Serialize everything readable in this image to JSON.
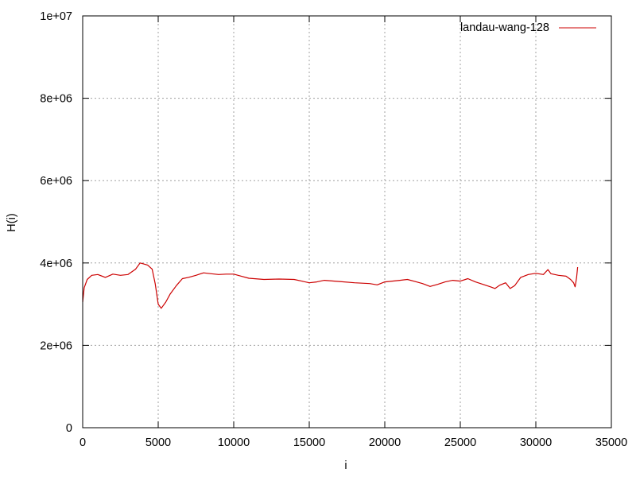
{
  "chart_data": {
    "type": "line",
    "title": "",
    "xlabel": "i",
    "ylabel": "H(i)",
    "xlim": [
      0,
      35000
    ],
    "ylim": [
      0,
      10000000
    ],
    "x_ticks": [
      0,
      5000,
      10000,
      15000,
      20000,
      25000,
      30000,
      35000
    ],
    "x_tick_labels": [
      "0",
      "5000",
      "10000",
      "15000",
      "20000",
      "25000",
      "30000",
      "35000"
    ],
    "y_ticks": [
      0,
      2000000,
      4000000,
      6000000,
      8000000,
      10000000
    ],
    "y_tick_labels": [
      "0",
      "2e+06",
      "4e+06",
      "6e+06",
      "8e+06",
      "1e+07"
    ],
    "grid": true,
    "legend_position": "top-right",
    "series_color": "#cc0000",
    "series": [
      {
        "name": "landau-wang-128",
        "x": [
          0,
          100,
          300,
          600,
          1000,
          1500,
          2000,
          2500,
          3000,
          3500,
          3800,
          4000,
          4300,
          4600,
          4800,
          5000,
          5200,
          5500,
          5800,
          6200,
          6600,
          7000,
          7500,
          8000,
          8500,
          9000,
          9500,
          10000,
          10500,
          11000,
          12000,
          13000,
          14000,
          14500,
          15000,
          15500,
          16000,
          17000,
          18000,
          19000,
          19500,
          20000,
          20500,
          21000,
          21500,
          22000,
          22500,
          23000,
          23500,
          24000,
          24500,
          25000,
          25500,
          26000,
          26500,
          27000,
          27300,
          27600,
          28000,
          28300,
          28600,
          29000,
          29500,
          30000,
          30500,
          30800,
          31000,
          31500,
          32000,
          32300,
          32500,
          32600,
          32700,
          32768
        ],
        "y": [
          3050000,
          3400000,
          3600000,
          3700000,
          3720000,
          3650000,
          3730000,
          3700000,
          3720000,
          3850000,
          4000000,
          3980000,
          3950000,
          3850000,
          3500000,
          3000000,
          2900000,
          3050000,
          3250000,
          3450000,
          3620000,
          3650000,
          3700000,
          3760000,
          3740000,
          3720000,
          3730000,
          3730000,
          3680000,
          3630000,
          3600000,
          3610000,
          3600000,
          3560000,
          3520000,
          3540000,
          3580000,
          3550000,
          3520000,
          3500000,
          3470000,
          3540000,
          3560000,
          3580000,
          3600000,
          3550000,
          3500000,
          3430000,
          3480000,
          3540000,
          3580000,
          3560000,
          3620000,
          3540000,
          3480000,
          3420000,
          3380000,
          3460000,
          3520000,
          3380000,
          3450000,
          3650000,
          3720000,
          3750000,
          3720000,
          3840000,
          3740000,
          3700000,
          3680000,
          3600000,
          3520000,
          3420000,
          3650000,
          3900000
        ]
      }
    ]
  }
}
